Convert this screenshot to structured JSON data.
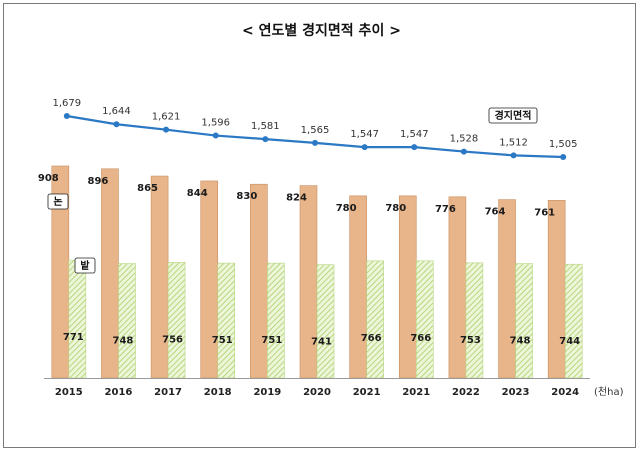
{
  "title": "< 연도별 경지면적 추이 >",
  "chart_data": {
    "type": "bar",
    "categories": [
      "2015",
      "2016",
      "2017",
      "2018",
      "2019",
      "2020",
      "2021",
      "2021",
      "2022",
      "2023",
      "2024"
    ],
    "unit": "(천ha)",
    "series": [
      {
        "name": "논",
        "type": "bar",
        "color": "#e8b48a",
        "values": [
          908,
          896,
          865,
          844,
          830,
          824,
          780,
          780,
          776,
          764,
          761
        ]
      },
      {
        "name": "밭",
        "type": "bar",
        "color": "#d9ecb2",
        "values": [
          771,
          748,
          756,
          751,
          751,
          741,
          766,
          766,
          753,
          748,
          744
        ]
      },
      {
        "name": "경지면적",
        "type": "line",
        "color": "#2b78c4",
        "values": [
          1679,
          1644,
          1621,
          1596,
          1581,
          1565,
          1547,
          1547,
          1528,
          1512,
          1505
        ]
      }
    ],
    "bar_labels": {
      "논": [
        "908",
        "896",
        "865",
        "844",
        "830",
        "824",
        "780",
        "780",
        "776",
        "764",
        "761"
      ],
      "밭": [
        "771",
        "748",
        "756",
        "751",
        "751",
        "741",
        "766",
        "766",
        "753",
        "748",
        "744"
      ],
      "경지면적": [
        "1,679",
        "1,644",
        "1,621",
        "1,596",
        "1,581",
        "1,565",
        "1,547",
        "1,547",
        "1,528",
        "1,512",
        "1,505"
      ]
    },
    "bar_ylim": [
      0,
      1000
    ],
    "line_ylim": [
      1300,
      1800
    ],
    "grid": false,
    "legend": "inline labels"
  }
}
